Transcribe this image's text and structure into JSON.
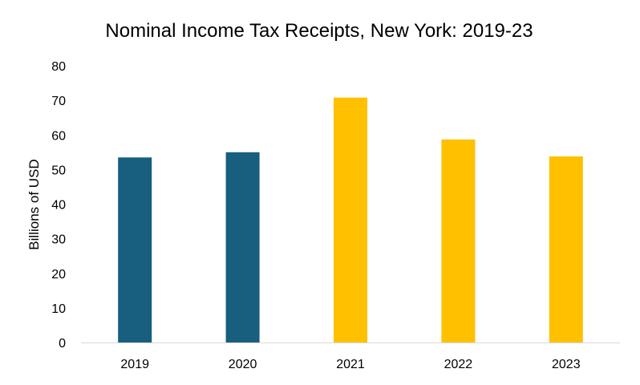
{
  "chart_data": {
    "type": "bar",
    "title": "Nominal Income Tax Receipts, New York: 2019-23",
    "xlabel": "",
    "ylabel": "Billions of USD",
    "categories": [
      "2019",
      "2020",
      "2021",
      "2022",
      "2023"
    ],
    "values": [
      53.5,
      55,
      70.8,
      58.7,
      53.8
    ],
    "bar_colors": [
      "#175E7F",
      "#175E7F",
      "#FFC000",
      "#FFC000",
      "#FFC000"
    ],
    "ylim": [
      0,
      80
    ],
    "yticks": [
      0,
      10,
      20,
      30,
      40,
      50,
      60,
      70,
      80
    ],
    "grid": false,
    "legend": "none"
  }
}
